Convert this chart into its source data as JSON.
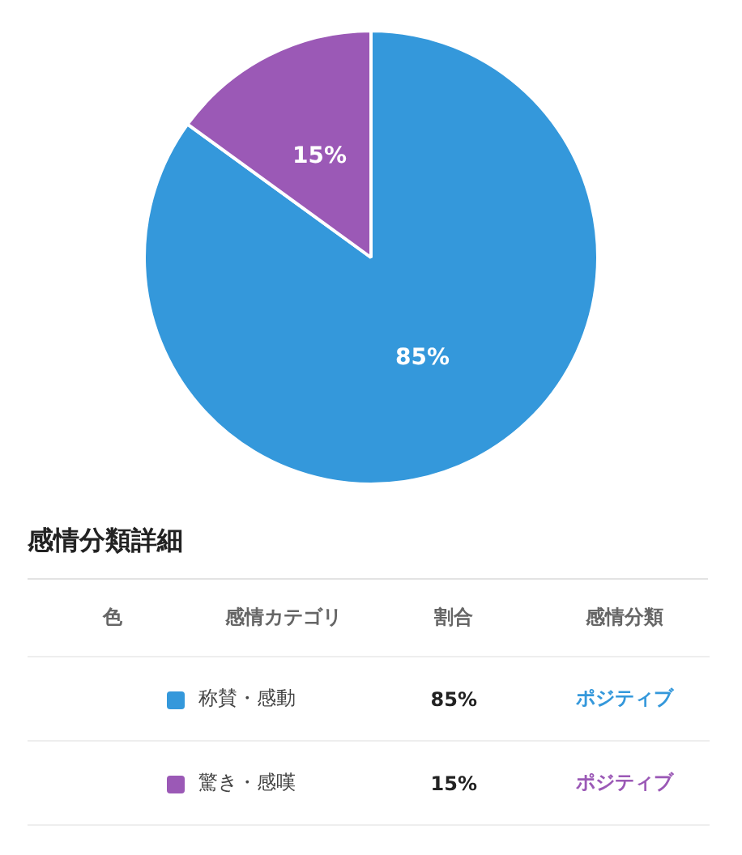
{
  "chart_data": {
    "type": "pie",
    "categories": [
      "称賛・感動",
      "驚き・感嘆"
    ],
    "values": [
      85,
      15
    ],
    "colors": [
      "#3498db",
      "#9b59b6"
    ],
    "value_labels": [
      "85%",
      "15%"
    ],
    "data_labels": true,
    "legend": "bottom",
    "annotations": [
      "感情分類詳細",
      "色",
      "感情カテゴリ",
      "割合",
      "感情分類",
      "ポジティブ",
      "ポジティブ"
    ]
  }
}
